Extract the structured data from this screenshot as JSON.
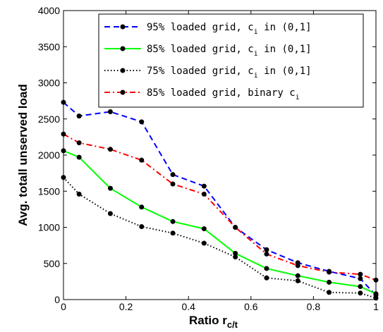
{
  "chart_data": {
    "type": "line",
    "title": "",
    "xlabel": "Ratio r",
    "xlabel_sub": "c/t",
    "ylabel": "Avg. totall unserved load",
    "xlim": [
      0,
      1
    ],
    "ylim": [
      0,
      4000
    ],
    "xticks": [
      0,
      0.2,
      0.4,
      0.6,
      0.8,
      1
    ],
    "xtick_labels": [
      "0",
      "0.2",
      "0.4",
      "0.6",
      "0.8",
      "1"
    ],
    "yticks": [
      0,
      500,
      1000,
      1500,
      2000,
      2500,
      3000,
      3500,
      4000
    ],
    "ytick_labels": [
      "0",
      "500",
      "1000",
      "1500",
      "2000",
      "2500",
      "3000",
      "3500",
      "4000"
    ],
    "grid": false,
    "legend_position": "top-right",
    "series": [
      {
        "name": "95% loaded grid, c_i in (0,1]",
        "legend_main": "95% loaded grid, c",
        "legend_sub": "i",
        "legend_rest": " in (0,1]",
        "color": "#0000ff",
        "style": "dashed",
        "x": [
          0,
          0.05,
          0.15,
          0.25,
          0.35,
          0.45,
          0.55,
          0.65,
          0.75,
          0.85,
          0.95,
          1.0
        ],
        "values": [
          2730,
          2540,
          2600,
          2460,
          1730,
          1570,
          1000,
          690,
          510,
          390,
          290,
          60
        ]
      },
      {
        "name": "85% loaded grid, c_i in (0,1]",
        "legend_main": "85% loaded grid, c",
        "legend_sub": "i",
        "legend_rest": " in (0,1]",
        "color": "#00ff00",
        "style": "solid",
        "x": [
          0,
          0.05,
          0.15,
          0.25,
          0.35,
          0.45,
          0.55,
          0.65,
          0.75,
          0.85,
          0.95,
          1.0
        ],
        "values": [
          2060,
          1970,
          1540,
          1280,
          1080,
          980,
          640,
          430,
          330,
          240,
          180,
          80
        ]
      },
      {
        "name": "75% loaded grid, c_i in (0,1]",
        "legend_main": "75% loaded grid, c",
        "legend_sub": "i",
        "legend_rest": " in (0,1]",
        "color": "#000000",
        "style": "dotted",
        "x": [
          0,
          0.05,
          0.15,
          0.25,
          0.35,
          0.45,
          0.55,
          0.65,
          0.75,
          0.85,
          0.95,
          1.0
        ],
        "values": [
          1690,
          1460,
          1190,
          1010,
          920,
          780,
          590,
          300,
          260,
          100,
          90,
          20
        ]
      },
      {
        "name": "85% loaded grid, binary c_i",
        "legend_main": "85% loaded grid, binary c",
        "legend_sub": "i",
        "legend_rest": "",
        "color": "#ff0000",
        "style": "dashdot",
        "x": [
          0,
          0.05,
          0.15,
          0.25,
          0.35,
          0.45,
          0.55,
          0.65,
          0.75,
          0.85,
          0.95,
          1.0
        ],
        "values": [
          2290,
          2170,
          2080,
          1930,
          1600,
          1460,
          1000,
          630,
          470,
          380,
          350,
          270
        ]
      }
    ]
  }
}
